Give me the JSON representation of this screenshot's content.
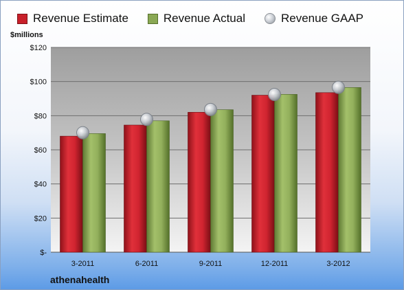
{
  "chart_data": {
    "type": "bar",
    "unit_label": "$millions",
    "categories": [
      "3-2011",
      "6-2011",
      "9-2011",
      "12-2011",
      "3-2012"
    ],
    "series": [
      {
        "name": "Revenue Estimate",
        "type": "bar",
        "values": [
          68,
          74.5,
          82,
          92,
          93.5
        ],
        "color": "#c8202a"
      },
      {
        "name": "Revenue Actual",
        "type": "bar",
        "values": [
          69.5,
          77,
          83.5,
          92.5,
          96.5
        ],
        "color": "#8aa854"
      },
      {
        "name": "Revenue GAAP",
        "type": "marker",
        "values": [
          70,
          77.8,
          83.6,
          92.4,
          96.6
        ],
        "color": "#c0c4ca"
      }
    ],
    "y_ticks": [
      "$-",
      "$20",
      "$40",
      "$60",
      "$80",
      "$100",
      "$120"
    ],
    "ylim": [
      0,
      120
    ],
    "grid": true,
    "legend": "top",
    "footer": "athenahealth"
  }
}
